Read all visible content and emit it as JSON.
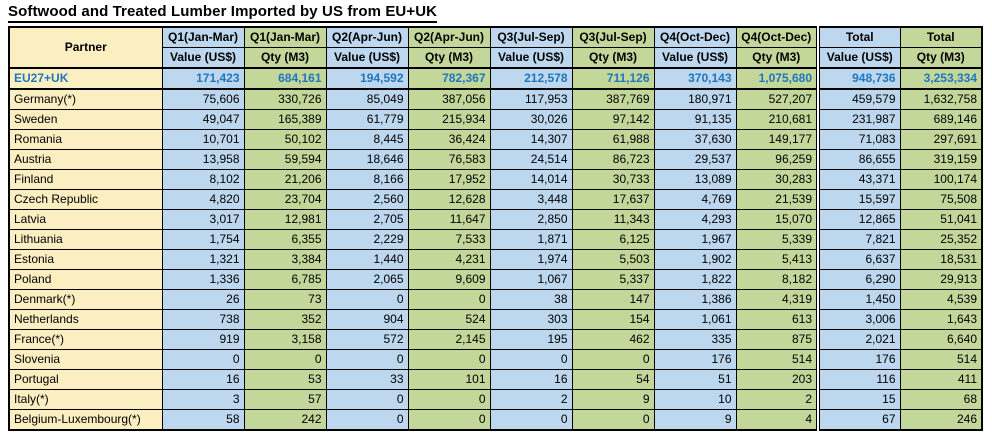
{
  "title": "Softwood and Treated Lumber Imported by US from EU+UK",
  "colors": {
    "value_column_bg": "#BDD7EE",
    "qty_column_bg": "#C4D79B",
    "partner_column_bg": "#FBEEC1",
    "total_row_text": "#2076BC",
    "border": "#000000",
    "title_text": "#000000"
  },
  "chart_data": {
    "type": "table",
    "title": "Softwood and Treated Lumber Imported by US from EU+UK",
    "partner_column_header": "Partner",
    "column_groups": [
      {
        "period": "Q1(Jan-Mar)",
        "sub": "Value (US$)"
      },
      {
        "period": "Q1(Jan-Mar)",
        "sub": "Qty (M3)"
      },
      {
        "period": "Q2(Apr-Jun)",
        "sub": "Value (US$)"
      },
      {
        "period": "Q2(Apr-Jun)",
        "sub": "Qty (M3)"
      },
      {
        "period": "Q3(Jul-Sep)",
        "sub": "Value (US$)"
      },
      {
        "period": "Q3(Jul-Sep)",
        "sub": "Qty (M3)"
      },
      {
        "period": "Q4(Oct-Dec)",
        "sub": "Value (US$)"
      },
      {
        "period": "Q4(Oct-Dec)",
        "sub": "Qty (M3)"
      },
      {
        "period": "Total",
        "sub": "Value (US$)"
      },
      {
        "period": "Total",
        "sub": "Qty (M3)"
      }
    ],
    "rows": [
      {
        "partner": "EU27+UK",
        "total_row": true,
        "values": [
          171423,
          684161,
          194592,
          782367,
          212578,
          711126,
          370143,
          1075680,
          948736,
          3253334
        ]
      },
      {
        "partner": "Germany(*)",
        "values": [
          75606,
          330726,
          85049,
          387056,
          117953,
          387769,
          180971,
          527207,
          459579,
          1632758
        ]
      },
      {
        "partner": "Sweden",
        "values": [
          49047,
          165389,
          61779,
          215934,
          30026,
          97142,
          91135,
          210681,
          231987,
          689146
        ]
      },
      {
        "partner": "Romania",
        "values": [
          10701,
          50102,
          8445,
          36424,
          14307,
          61988,
          37630,
          149177,
          71083,
          297691
        ]
      },
      {
        "partner": "Austria",
        "values": [
          13958,
          59594,
          18646,
          76583,
          24514,
          86723,
          29537,
          96259,
          86655,
          319159
        ]
      },
      {
        "partner": "Finland",
        "values": [
          8102,
          21206,
          8166,
          17952,
          14014,
          30733,
          13089,
          30283,
          43371,
          100174
        ]
      },
      {
        "partner": "Czech Republic",
        "values": [
          4820,
          23704,
          2560,
          12628,
          3448,
          17637,
          4769,
          21539,
          15597,
          75508
        ]
      },
      {
        "partner": "Latvia",
        "values": [
          3017,
          12981,
          2705,
          11647,
          2850,
          11343,
          4293,
          15070,
          12865,
          51041
        ]
      },
      {
        "partner": "Lithuania",
        "values": [
          1754,
          6355,
          2229,
          7533,
          1871,
          6125,
          1967,
          5339,
          7821,
          25352
        ]
      },
      {
        "partner": "Estonia",
        "values": [
          1321,
          3384,
          1440,
          4231,
          1974,
          5503,
          1902,
          5413,
          6637,
          18531
        ]
      },
      {
        "partner": "Poland",
        "values": [
          1336,
          6785,
          2065,
          9609,
          1067,
          5337,
          1822,
          8182,
          6290,
          29913
        ]
      },
      {
        "partner": "Denmark(*)",
        "values": [
          26,
          73,
          0,
          0,
          38,
          147,
          1386,
          4319,
          1450,
          4539
        ]
      },
      {
        "partner": "Netherlands",
        "values": [
          738,
          352,
          904,
          524,
          303,
          154,
          1061,
          613,
          3006,
          1643
        ]
      },
      {
        "partner": "France(*)",
        "values": [
          919,
          3158,
          572,
          2145,
          195,
          462,
          335,
          875,
          2021,
          6640
        ]
      },
      {
        "partner": "Slovenia",
        "values": [
          0,
          0,
          0,
          0,
          0,
          0,
          176,
          514,
          176,
          514
        ]
      },
      {
        "partner": "Portugal",
        "values": [
          16,
          53,
          33,
          101,
          16,
          54,
          51,
          203,
          116,
          411
        ]
      },
      {
        "partner": "Italy(*)",
        "values": [
          3,
          57,
          0,
          0,
          2,
          9,
          10,
          2,
          15,
          68
        ]
      },
      {
        "partner": "Belgium-Luxembourg(*)",
        "values": [
          58,
          242,
          0,
          0,
          0,
          0,
          9,
          4,
          67,
          246
        ]
      }
    ]
  }
}
